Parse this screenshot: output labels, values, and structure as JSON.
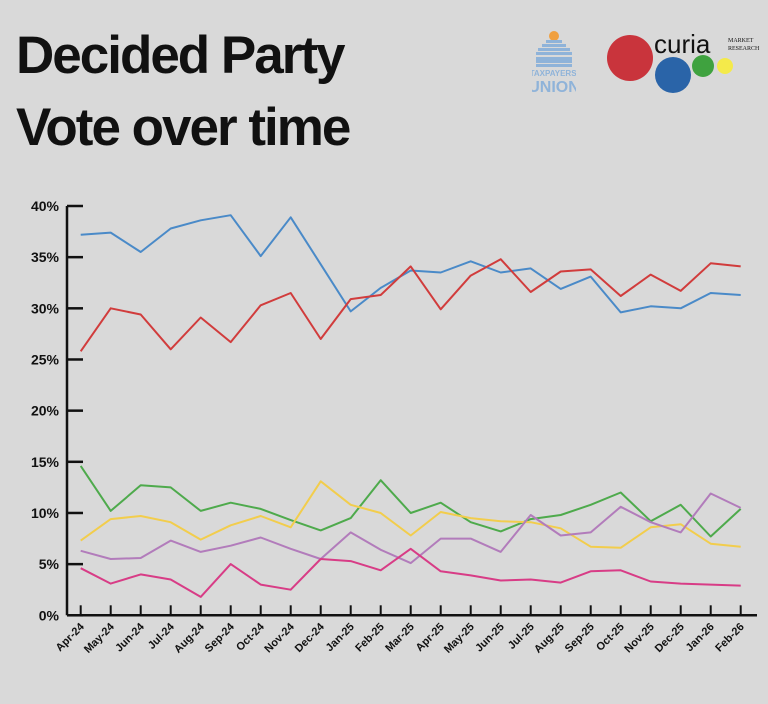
{
  "title": {
    "line1": "Decided Party",
    "line2": "Vote over time"
  },
  "logos": {
    "taxpayers_union": "TAXPAYERS' UNION",
    "curia": "curia",
    "curia_sub1": "MARKET",
    "curia_sub2": "RESEARCH"
  },
  "chart_data": {
    "type": "line",
    "title": "Decided Party Vote over time",
    "categories": [
      "Apr-24",
      "May-24",
      "Jun-24",
      "Jul-24",
      "Aug-24",
      "Sep-24",
      "Oct-24",
      "Nov-24",
      "Dec-24",
      "Jan-25",
      "Feb-25",
      "Mar-25",
      "Apr-25",
      "May-25",
      "Jun-25",
      "Jul-25",
      "Aug-25",
      "Sep-25",
      "Oct-25",
      "Nov-25",
      "Dec-25",
      "Jan-26",
      "Feb-26"
    ],
    "ylim": [
      0,
      40
    ],
    "yticks": [
      "0%",
      "5%",
      "10%",
      "15%",
      "20%",
      "25%",
      "30%",
      "35%",
      "40%"
    ],
    "grid": false,
    "series": [
      {
        "color": "#4a8ac8",
        "values": [
          37.2,
          37.4,
          35.5,
          37.8,
          38.6,
          39.1,
          35.1,
          38.9,
          34.3,
          29.7,
          32.0,
          33.7,
          33.5,
          34.6,
          33.5,
          33.9,
          31.9,
          33.1,
          29.6,
          30.2,
          30.0,
          31.5,
          31.3
        ]
      },
      {
        "color": "#d13c3c",
        "values": [
          25.8,
          30.0,
          29.4,
          26.0,
          29.1,
          26.7,
          30.3,
          31.5,
          27.0,
          30.9,
          31.3,
          34.1,
          29.9,
          33.2,
          34.8,
          31.6,
          33.6,
          33.8,
          31.2,
          33.3,
          31.7,
          34.4,
          34.1
        ]
      },
      {
        "color": "#4eaa4c",
        "values": [
          14.6,
          10.2,
          12.7,
          12.5,
          10.2,
          11.0,
          10.4,
          9.3,
          8.3,
          9.5,
          13.2,
          10.0,
          11.0,
          9.1,
          8.2,
          9.4,
          9.8,
          10.8,
          12.0,
          9.2,
          10.8,
          7.7,
          10.4
        ]
      },
      {
        "color": "#f2cd4c",
        "values": [
          7.3,
          9.4,
          9.7,
          9.1,
          7.4,
          8.8,
          9.7,
          8.6,
          13.1,
          10.8,
          10.0,
          7.8,
          10.1,
          9.5,
          9.2,
          9.1,
          8.5,
          6.7,
          6.6,
          8.6,
          8.9,
          7.0,
          6.7
        ]
      },
      {
        "color": "#b27cbb",
        "values": [
          6.3,
          5.5,
          5.6,
          7.3,
          6.2,
          6.8,
          7.6,
          6.5,
          5.5,
          8.1,
          6.4,
          5.1,
          7.5,
          7.5,
          6.2,
          9.8,
          7.8,
          8.1,
          10.6,
          9.1,
          8.1,
          11.9,
          10.5
        ]
      },
      {
        "color": "#d83c86",
        "values": [
          4.6,
          3.1,
          4.0,
          3.5,
          1.8,
          5.0,
          3.0,
          2.5,
          5.5,
          5.3,
          4.4,
          6.5,
          4.3,
          3.9,
          3.4,
          3.5,
          3.2,
          4.3,
          4.4,
          3.3,
          3.1,
          3.0,
          2.9
        ]
      }
    ]
  }
}
